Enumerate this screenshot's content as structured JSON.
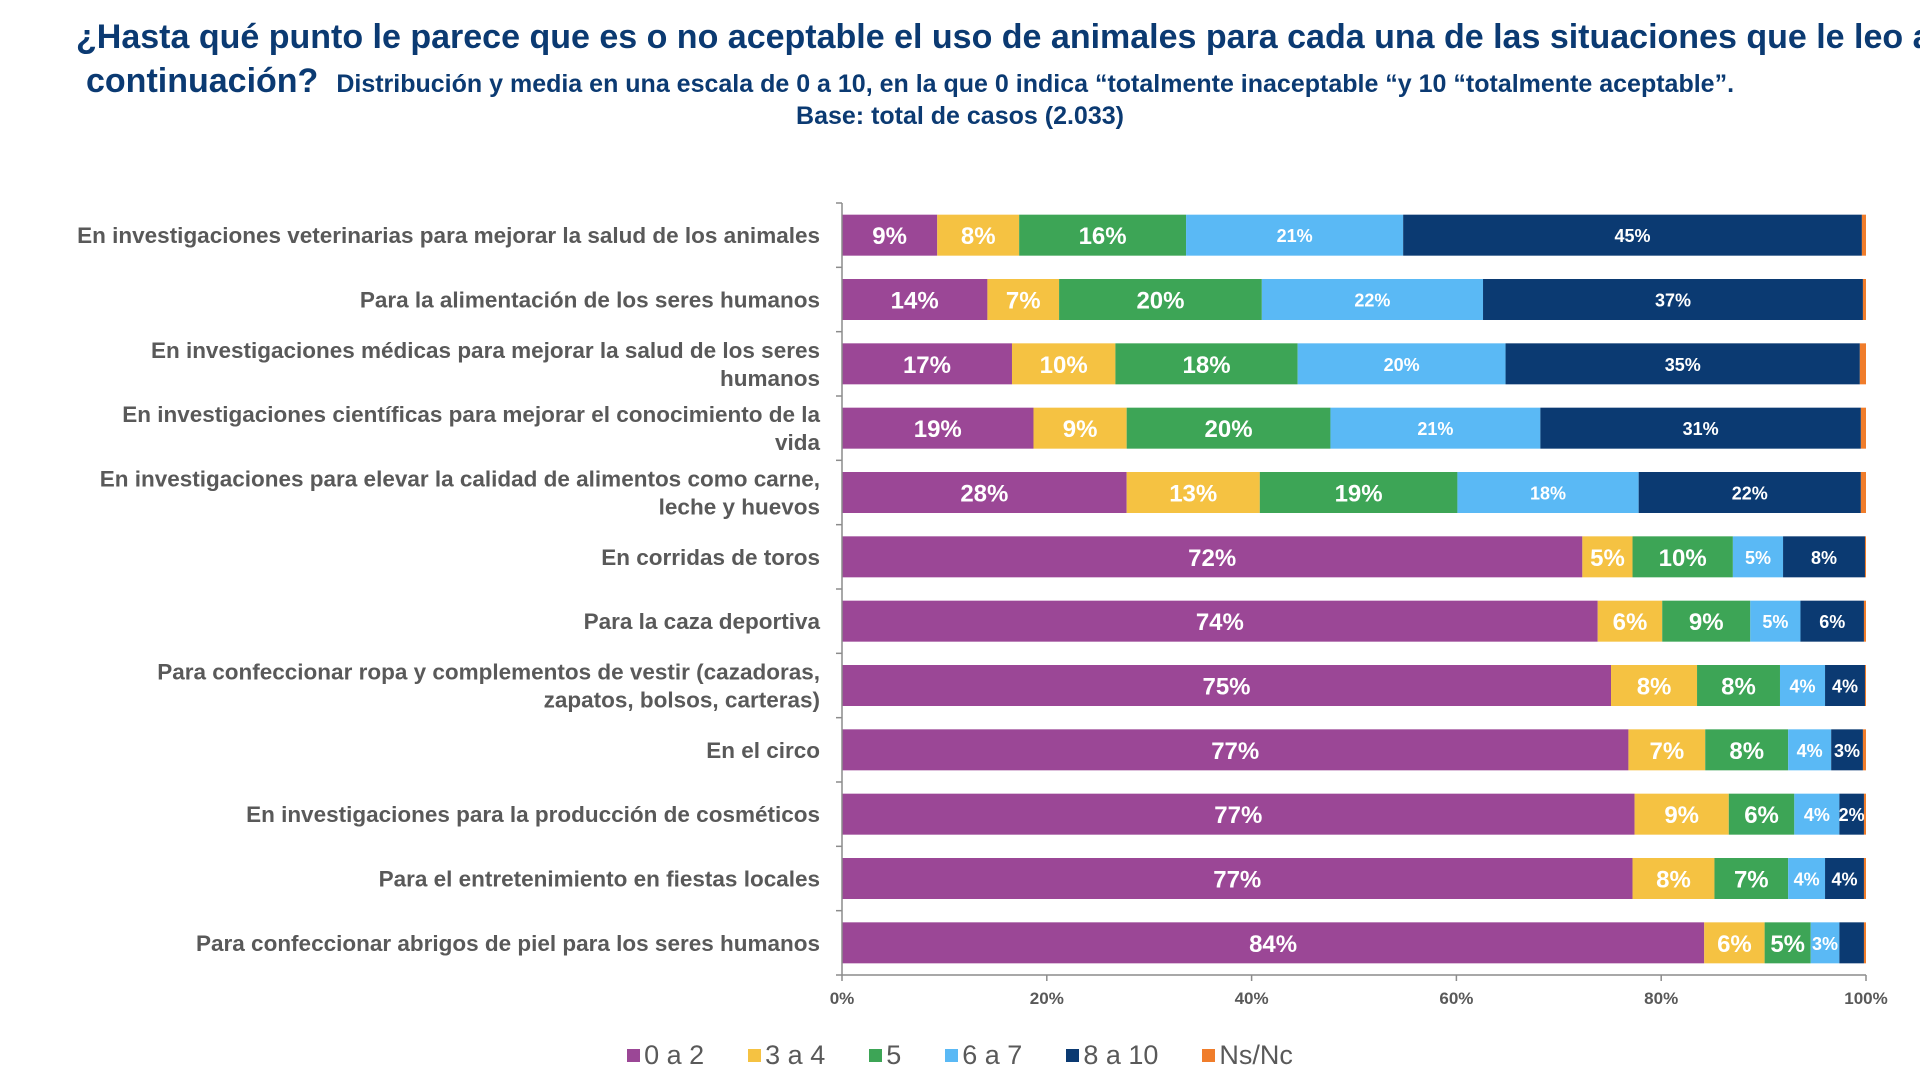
{
  "header": {
    "question_line1": "¿Hasta qué punto le parece que es o no aceptable el uso de animales para cada una de las situaciones que le leo a",
    "question_line2": "continuación?",
    "subtitle": "Distribución y media en una escala de 0 a 10,  en la que 0 indica “totalmente inaceptable “y 10 “totalmente aceptable”.",
    "base": "Base: total de casos (2.033)"
  },
  "colors": {
    "0 a 2": "#9b4796",
    "3 a 4": "#f5c242",
    "5": "#3da556",
    "6 a 7": "#5ab9f5",
    "8 a 10": "#0b3a72",
    "Ns/Nc": "#f07d2b"
  },
  "chart_data": {
    "type": "bar",
    "orientation": "horizontal",
    "stacked": "percent",
    "categories": [
      [
        "En investigaciones veterinarias para mejorar la salud de los animales"
      ],
      [
        "Para la alimentación de los seres humanos"
      ],
      [
        "En investigaciones médicas para mejorar la salud de los seres",
        "humanos"
      ],
      [
        "En investigaciones científicas para mejorar el conocimiento de la",
        "vida"
      ],
      [
        "En investigaciones para elevar la calidad de alimentos como carne,",
        "leche y huevos"
      ],
      [
        "En corridas de toros"
      ],
      [
        "Para la caza deportiva"
      ],
      [
        "Para confeccionar ropa y complementos de vestir (cazadoras,",
        "zapatos, bolsos, carteras)"
      ],
      [
        "En el circo"
      ],
      [
        "En investigaciones para la producción de cosméticos"
      ],
      [
        "Para el entretenimiento en fiestas locales"
      ],
      [
        "Para confeccionar abrigos de piel para los seres humanos"
      ]
    ],
    "series": [
      {
        "name": "0 a 2",
        "values": [
          9.3,
          14.2,
          16.6,
          18.7,
          27.8,
          72.3,
          73.8,
          75.1,
          76.8,
          77.4,
          77.2,
          84.2
        ]
      },
      {
        "name": "3 a 4",
        "values": [
          8.0,
          7.0,
          10.1,
          9.1,
          13.0,
          4.9,
          6.3,
          8.4,
          7.5,
          9.2,
          8.0,
          5.9
        ]
      },
      {
        "name": "5",
        "values": [
          16.3,
          19.8,
          17.8,
          19.9,
          19.3,
          9.8,
          8.6,
          8.1,
          8.1,
          6.4,
          7.2,
          4.5
        ]
      },
      {
        "name": "6 a 7",
        "values": [
          21.2,
          21.6,
          20.3,
          20.5,
          17.7,
          4.9,
          4.9,
          4.4,
          4.2,
          4.4,
          3.6,
          2.8
        ]
      },
      {
        "name": "8 a 10",
        "values": [
          44.8,
          37.1,
          34.6,
          31.3,
          21.7,
          8.0,
          6.2,
          3.9,
          3.1,
          2.4,
          3.8,
          2.4
        ]
      },
      {
        "name": "Ns/Nc",
        "values": [
          0.4,
          0.3,
          0.6,
          0.5,
          0.5,
          0.1,
          0.2,
          0.1,
          0.3,
          0.2,
          0.2,
          0.2
        ]
      }
    ],
    "data_labels": [
      [
        "9%",
        "8%",
        "16%",
        "21%",
        "45%",
        ""
      ],
      [
        "14%",
        "7%",
        "20%",
        "22%",
        "37%",
        ""
      ],
      [
        "17%",
        "10%",
        "18%",
        "20%",
        "35%",
        ""
      ],
      [
        "19%",
        "9%",
        "20%",
        "21%",
        "31%",
        ""
      ],
      [
        "28%",
        "13%",
        "19%",
        "18%",
        "22%",
        ""
      ],
      [
        "72%",
        "5%",
        "10%",
        "5%",
        "8%",
        ""
      ],
      [
        "74%",
        "6%",
        "9%",
        "5%",
        "6%",
        ""
      ],
      [
        "75%",
        "8%",
        "8%",
        "4%",
        "4%",
        ""
      ],
      [
        "77%",
        "7%",
        "8%",
        "4%",
        "3%",
        ""
      ],
      [
        "77%",
        "9%",
        "6%",
        "4%",
        "2%",
        ""
      ],
      [
        "77%",
        "8%",
        "7%",
        "4%",
        "4%",
        ""
      ],
      [
        "84%",
        "6%",
        "5%",
        "3%",
        "",
        ""
      ]
    ],
    "x_ticks": [
      "0%",
      "20%",
      "40%",
      "60%",
      "80%",
      "100%"
    ],
    "xlim": [
      0,
      100
    ],
    "grid": false,
    "legend_position": "bottom"
  }
}
